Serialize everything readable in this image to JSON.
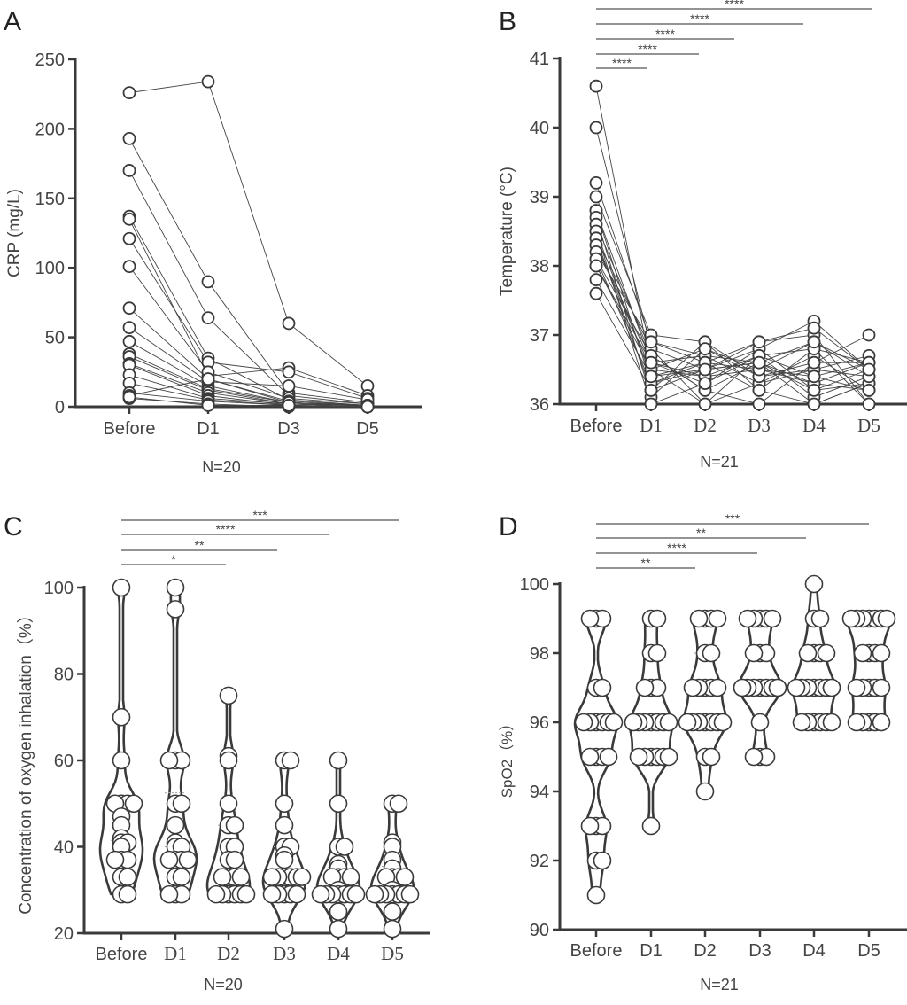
{
  "chart_data": [
    {
      "panel_label": "A",
      "type": "line",
      "style": "paired individual trajectories",
      "categories": [
        "Before",
        "D1",
        "D3",
        "D5"
      ],
      "ylabel": "CRP (mg/L)",
      "ylim": [
        0,
        250
      ],
      "yticks": [
        0,
        50,
        100,
        150,
        200,
        250
      ],
      "annotation": "N=20",
      "series": [
        {
          "values": [
            226,
            234,
            60,
            15
          ]
        },
        {
          "values": [
            193,
            90,
            10,
            3
          ]
        },
        {
          "values": [
            170,
            64,
            8,
            2
          ]
        },
        {
          "values": [
            137,
            35,
            5,
            1
          ]
        },
        {
          "values": [
            135,
            22,
            28,
            8
          ]
        },
        {
          "values": [
            121,
            32,
            25,
            6
          ]
        },
        {
          "values": [
            101,
            25,
            6,
            2
          ]
        },
        {
          "values": [
            71,
            20,
            4,
            1
          ]
        },
        {
          "values": [
            57,
            18,
            15,
            5
          ]
        },
        {
          "values": [
            47,
            15,
            3,
            1
          ]
        },
        {
          "values": [
            38,
            13,
            3,
            1
          ]
        },
        {
          "values": [
            36,
            12,
            2,
            0
          ]
        },
        {
          "values": [
            31,
            10,
            2,
            1
          ]
        },
        {
          "values": [
            30,
            8,
            1,
            0
          ]
        },
        {
          "values": [
            23,
            6,
            2,
            1
          ]
        },
        {
          "values": [
            17,
            5,
            1,
            0
          ]
        },
        {
          "values": [
            10,
            4,
            1,
            0
          ]
        },
        {
          "values": [
            8,
            20,
            3,
            1
          ]
        },
        {
          "values": [
            6,
            2,
            0,
            0
          ]
        },
        {
          "values": [
            7,
            1,
            1,
            0
          ]
        }
      ]
    },
    {
      "panel_label": "B",
      "type": "line",
      "style": "paired individual trajectories",
      "categories": [
        "Before",
        "D1",
        "D2",
        "D3",
        "D4",
        "D5"
      ],
      "ylabel": "Temperature (°C)",
      "ylim": [
        36,
        41
      ],
      "yticks": [
        36,
        37,
        38,
        39,
        40,
        41
      ],
      "annotation": "N=21",
      "significance": [
        {
          "from": "Before",
          "to": "D1",
          "label": "****"
        },
        {
          "from": "Before",
          "to": "D2",
          "label": "****"
        },
        {
          "from": "Before",
          "to": "D3",
          "label": "****"
        },
        {
          "from": "Before",
          "to": "D4",
          "label": "****"
        },
        {
          "from": "Before",
          "to": "D5",
          "label": "****"
        }
      ],
      "series": [
        {
          "values": [
            40.6,
            36.5,
            36.0,
            36.3,
            36.5,
            36.4
          ]
        },
        {
          "values": [
            40.0,
            36.8,
            36.5,
            36.8,
            37.2,
            36.5
          ]
        },
        {
          "values": [
            39.2,
            36.9,
            36.7,
            36.6,
            36.3,
            36.2
          ]
        },
        {
          "values": [
            39.0,
            37.0,
            36.9,
            36.2,
            36.0,
            36.3
          ]
        },
        {
          "values": [
            38.8,
            36.6,
            36.4,
            36.7,
            36.8,
            36.6
          ]
        },
        {
          "values": [
            38.8,
            36.3,
            36.6,
            36.9,
            37.0,
            36.0
          ]
        },
        {
          "values": [
            38.7,
            36.1,
            36.8,
            36.5,
            36.4,
            36.6
          ]
        },
        {
          "values": [
            38.6,
            36.7,
            36.2,
            36.0,
            36.6,
            37.0
          ]
        },
        {
          "values": [
            38.5,
            36.4,
            36.5,
            36.6,
            36.9,
            36.5
          ]
        },
        {
          "values": [
            38.5,
            36.0,
            36.3,
            36.8,
            36.2,
            36.3
          ]
        },
        {
          "values": [
            38.4,
            36.2,
            36.9,
            36.4,
            36.5,
            36.7
          ]
        },
        {
          "values": [
            38.4,
            36.8,
            36.0,
            36.7,
            36.1,
            36.4
          ]
        },
        {
          "values": [
            38.3,
            36.6,
            36.7,
            36.3,
            36.7,
            36.2
          ]
        },
        {
          "values": [
            38.3,
            36.5,
            36.4,
            36.5,
            36.3,
            36.6
          ]
        },
        {
          "values": [
            38.2,
            36.9,
            36.6,
            36.2,
            36.8,
            36.0
          ]
        },
        {
          "values": [
            38.1,
            36.3,
            36.5,
            36.9,
            37.1,
            36.5
          ]
        },
        {
          "values": [
            38.1,
            36.7,
            36.2,
            36.6,
            36.0,
            36.3
          ]
        },
        {
          "values": [
            38.0,
            36.5,
            36.8,
            36.4,
            36.6,
            36.6
          ]
        },
        {
          "values": [
            38.0,
            36.6,
            36.3,
            36.7,
            36.4,
            36.2
          ]
        },
        {
          "values": [
            37.8,
            36.4,
            36.6,
            36.5,
            36.9,
            36.4
          ]
        },
        {
          "values": [
            37.6,
            36.2,
            36.5,
            36.6,
            36.2,
            36.5
          ]
        }
      ]
    },
    {
      "panel_label": "C",
      "type": "violin",
      "style": "violin with individual points, dashed median and quartiles",
      "categories": [
        "Before",
        "D1",
        "D2",
        "D3",
        "D4",
        "D5"
      ],
      "ylabel": "Concentration of oxygen inhalation（%）",
      "ylim": [
        20,
        100
      ],
      "yticks": [
        20,
        40,
        60,
        80,
        100
      ],
      "annotation": "N=20",
      "significance": [
        {
          "from": "Before",
          "to": "D2",
          "label": "*"
        },
        {
          "from": "Before",
          "to": "D3",
          "label": "**"
        },
        {
          "from": "Before",
          "to": "D4",
          "label": "****"
        },
        {
          "from": "Before",
          "to": "D5",
          "label": "***"
        }
      ],
      "groups": [
        [
          100,
          70,
          60,
          50,
          50,
          50,
          50,
          47,
          45,
          42,
          41,
          41,
          40,
          37,
          37,
          37,
          33,
          33,
          29,
          29
        ],
        [
          100,
          95,
          60,
          60,
          60,
          50,
          50,
          45,
          41,
          40,
          40,
          37,
          37,
          37,
          37,
          33,
          33,
          29,
          29,
          29
        ],
        [
          75,
          61,
          60,
          50,
          45,
          45,
          40,
          40,
          37,
          37,
          33,
          33,
          33,
          33,
          29,
          29,
          29,
          29,
          29,
          29
        ],
        [
          60,
          60,
          50,
          45,
          40,
          40,
          38,
          37,
          33,
          33,
          33,
          33,
          33,
          33,
          29,
          29,
          29,
          29,
          29,
          21
        ],
        [
          60,
          50,
          40,
          40,
          36,
          35,
          33,
          33,
          33,
          33,
          30,
          29,
          29,
          29,
          29,
          29,
          29,
          29,
          25,
          21
        ],
        [
          50,
          50,
          41,
          40,
          37,
          35,
          33,
          33,
          33,
          33,
          30,
          29,
          29,
          29,
          29,
          29,
          29,
          29,
          25,
          21
        ]
      ]
    },
    {
      "panel_label": "D",
      "type": "violin",
      "style": "violin with individual points, dashed median and quartiles",
      "categories": [
        "Before",
        "D1",
        "D2",
        "D3",
        "D4",
        "D5"
      ],
      "ylabel": "SpO2（%）",
      "ylim": [
        90,
        100
      ],
      "yticks": [
        90,
        92,
        94,
        96,
        98,
        100
      ],
      "annotation": "N=21",
      "significance": [
        {
          "from": "Before",
          "to": "D2",
          "label": "**"
        },
        {
          "from": "Before",
          "to": "D3",
          "label": "****"
        },
        {
          "from": "Before",
          "to": "D4",
          "label": "**"
        },
        {
          "from": "Before",
          "to": "D5",
          "label": "***"
        }
      ],
      "groups": [
        [
          99,
          99,
          99,
          97,
          97,
          96,
          96,
          96,
          96,
          96,
          96,
          95,
          95,
          95,
          95,
          93,
          93,
          93,
          92,
          92,
          91
        ],
        [
          99,
          99,
          98,
          98,
          97,
          97,
          97,
          96,
          96,
          96,
          96,
          96,
          96,
          96,
          95,
          95,
          95,
          95,
          95,
          95,
          93
        ],
        [
          99,
          99,
          99,
          99,
          98,
          98,
          97,
          97,
          97,
          97,
          97,
          96,
          96,
          96,
          96,
          96,
          96,
          95,
          95,
          94,
          96
        ],
        [
          99,
          99,
          99,
          99,
          99,
          98,
          98,
          98,
          97,
          97,
          97,
          97,
          97,
          97,
          97,
          97,
          97,
          96,
          95,
          95,
          95
        ],
        [
          100,
          99,
          99,
          98,
          98,
          98,
          98,
          97,
          97,
          97,
          97,
          97,
          97,
          97,
          96,
          96,
          96,
          96,
          96,
          96,
          97
        ],
        [
          99,
          99,
          99,
          99,
          99,
          99,
          98,
          98,
          98,
          98,
          97,
          97,
          97,
          97,
          97,
          96,
          96,
          96,
          96,
          96,
          99
        ]
      ]
    }
  ],
  "colors": {
    "ink": "#3a3a3a",
    "marker_fill": "#ffffff",
    "median_line": "#aaaaaa"
  }
}
